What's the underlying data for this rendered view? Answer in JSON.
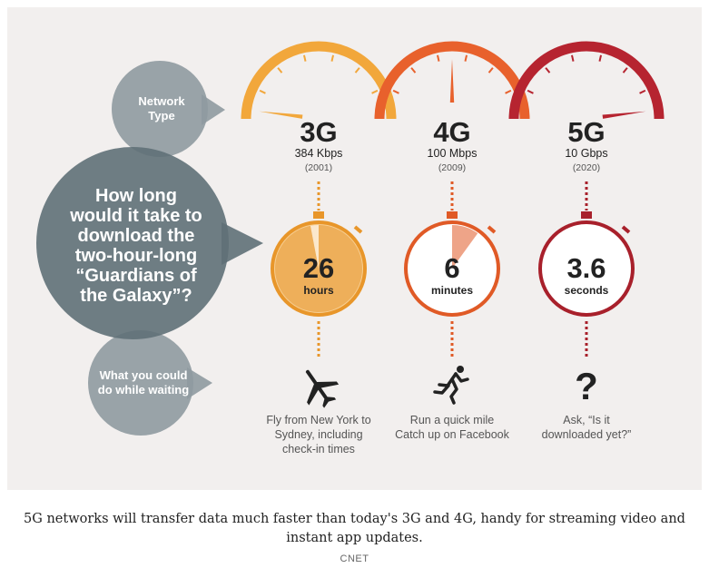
{
  "bubbles": {
    "network_type": [
      "Network",
      "Type"
    ],
    "question": [
      "How long",
      "would it take to",
      "download the",
      "two-hour-long",
      "“Guardians of",
      "the Galaxy”?"
    ],
    "waiting": [
      "What you could",
      "do while waiting"
    ]
  },
  "networks": [
    {
      "name": "3G",
      "speed": "384 Kbps",
      "year": "(2001)",
      "time_value": "26",
      "time_unit": "hours",
      "activity_icon": "airplane-icon",
      "activity": [
        "Fly from New York to",
        "Sydney, including",
        "check-in times"
      ],
      "color": "#f2a73b",
      "dark_color": "#e8962a",
      "face_color": "#f7cf94",
      "gauge_level": 0.04,
      "dial_fill": 0.97
    },
    {
      "name": "4G",
      "speed": "100 Mbps",
      "year": "(2009)",
      "time_value": "6",
      "time_unit": "minutes",
      "activity_icon": "runner-icon",
      "activity": [
        "Run a quick mile",
        "Catch up on Facebook"
      ],
      "color": "#e8612c",
      "dark_color": "#e05a26",
      "face_color": "#ffffff",
      "gauge_level": 0.5,
      "dial_fill": 0.1
    },
    {
      "name": "5G",
      "speed": "10 Gbps",
      "year": "(2020)",
      "time_value": "3.6",
      "time_unit": "seconds",
      "activity_icon": "question-mark-icon",
      "activity": [
        "Ask, “Is it",
        "downloaded yet?”"
      ],
      "color": "#b62430",
      "dark_color": "#a8202b",
      "face_color": "#ffffff",
      "gauge_level": 0.96,
      "dial_fill": 0.0
    }
  ],
  "caption": "5G networks will transfer data much faster than today's 3G and 4G, handy for streaming video and instant app updates.",
  "credit": "CNET",
  "colors": {
    "bubble_gray": "#8f9aa0",
    "bubble_dark": "#5f7077",
    "panel": "#f2efee",
    "text_dark": "#222222",
    "text_gray": "#555555"
  }
}
